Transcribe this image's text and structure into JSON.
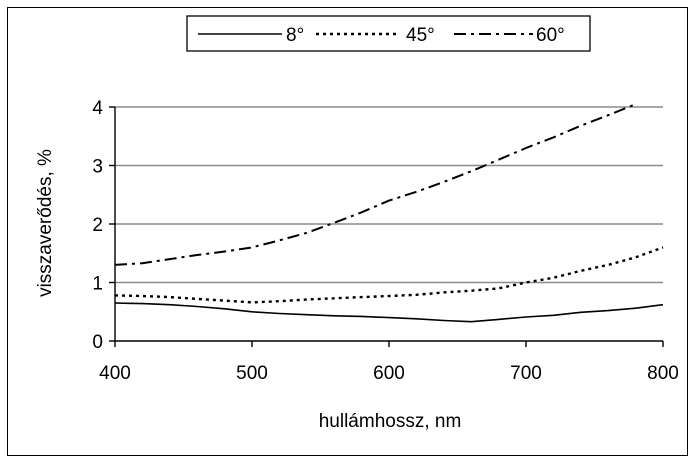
{
  "chart_data": {
    "type": "line",
    "xlabel": "hullámhossz, nm",
    "ylabel": "visszaverődés, %",
    "xlim": [
      400,
      800
    ],
    "ylim": [
      0,
      4
    ],
    "xticks": [
      "400",
      "500",
      "600",
      "700",
      "800"
    ],
    "yticks": [
      "0",
      "1",
      "2",
      "3",
      "4"
    ],
    "grid": "horizontal",
    "legend_position": "top",
    "series": [
      {
        "name": "8°",
        "style": "solid",
        "x": [
          400,
          420,
          440,
          460,
          480,
          500,
          520,
          540,
          560,
          580,
          600,
          620,
          640,
          660,
          680,
          700,
          720,
          740,
          760,
          780,
          800
        ],
        "y": [
          0.65,
          0.64,
          0.62,
          0.59,
          0.55,
          0.5,
          0.47,
          0.45,
          0.43,
          0.42,
          0.4,
          0.38,
          0.35,
          0.33,
          0.37,
          0.41,
          0.44,
          0.49,
          0.52,
          0.56,
          0.62
        ]
      },
      {
        "name": "45°",
        "style": "dotted",
        "x": [
          400,
          420,
          440,
          460,
          480,
          500,
          520,
          540,
          560,
          580,
          600,
          620,
          640,
          660,
          680,
          700,
          720,
          740,
          760,
          780,
          800
        ],
        "y": [
          0.78,
          0.77,
          0.75,
          0.72,
          0.69,
          0.66,
          0.68,
          0.71,
          0.73,
          0.75,
          0.77,
          0.79,
          0.83,
          0.86,
          0.9,
          1.0,
          1.08,
          1.2,
          1.3,
          1.43,
          1.6
        ]
      },
      {
        "name": "60°",
        "style": "dashdot",
        "x": [
          400,
          420,
          440,
          460,
          480,
          500,
          520,
          540,
          560,
          580,
          600,
          620,
          640,
          660,
          680,
          700,
          720,
          740,
          760,
          780
        ],
        "y": [
          1.3,
          1.33,
          1.4,
          1.47,
          1.53,
          1.6,
          1.72,
          1.85,
          2.02,
          2.2,
          2.4,
          2.55,
          2.72,
          2.9,
          3.1,
          3.3,
          3.48,
          3.68,
          3.86,
          4.05
        ]
      }
    ]
  }
}
